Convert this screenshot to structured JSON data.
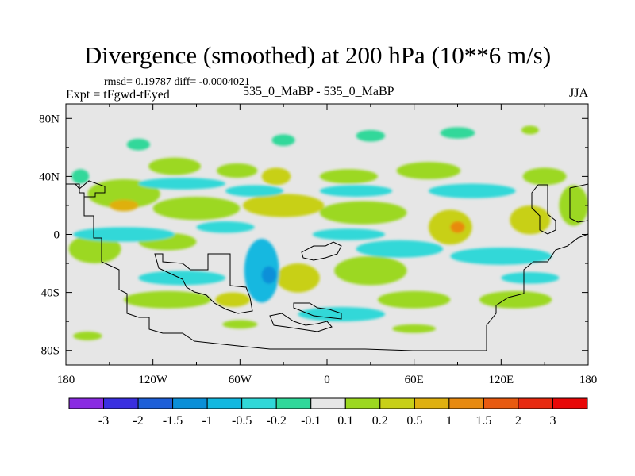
{
  "chart_data": {
    "type": "heatmap",
    "title": "Divergence (smoothed) at 200 hPa (10**6 m/s)",
    "stats_text": "rmsd= 0.19787 diff= -0.0004021",
    "left_label": "Expt = tFgwd-tEyed",
    "center_label": "535_0_MaBP - 535_0_MaBP",
    "right_label": "JJA",
    "x_ticks": [
      "180",
      "120W",
      "60W",
      "0",
      "60E",
      "120E",
      "180"
    ],
    "x_tick_values": [
      -180,
      -120,
      -60,
      0,
      60,
      120,
      180
    ],
    "y_ticks": [
      "80N",
      "40N",
      "0",
      "40S",
      "80S"
    ],
    "y_tick_values": [
      80,
      40,
      0,
      -40,
      -80
    ],
    "xlim": [
      -180,
      180
    ],
    "ylim": [
      -90,
      90
    ],
    "colorbar": {
      "levels": [
        "-3",
        "-2",
        "-1.5",
        "-1",
        "-0.5",
        "-0.2",
        "-0.1",
        "0.1",
        "0.2",
        "0.5",
        "1",
        "1.5",
        "2",
        "3"
      ],
      "colors": [
        "#8a2be2",
        "#3a2fe0",
        "#1e5fd8",
        "#0a8fd8",
        "#12b8e0",
        "#30d8d8",
        "#30d89a",
        "#e6e6e6",
        "#9cd820",
        "#c8d018",
        "#dfb010",
        "#e88a10",
        "#e85a10",
        "#e82a10",
        "#e80808"
      ]
    },
    "blobs": [
      {
        "lon": -105,
        "lat": 47,
        "rlon": 18,
        "rlat": 6,
        "level": 8
      },
      {
        "lon": -62,
        "lat": 44,
        "rlon": 14,
        "rlat": 5,
        "level": 8
      },
      {
        "lon": -35,
        "lat": 40,
        "rlon": 10,
        "rlat": 6,
        "level": 9
      },
      {
        "lon": 15,
        "lat": 40,
        "rlon": 20,
        "rlat": 5,
        "level": 8
      },
      {
        "lon": 70,
        "lat": 44,
        "rlon": 22,
        "rlat": 6,
        "level": 8
      },
      {
        "lon": 150,
        "lat": 40,
        "rlon": 15,
        "rlat": 6,
        "level": 8
      },
      {
        "lon": -140,
        "lat": 28,
        "rlon": 25,
        "rlat": 10,
        "level": 8
      },
      {
        "lon": -140,
        "lat": 20,
        "rlon": 10,
        "rlat": 4,
        "level": 10
      },
      {
        "lon": -90,
        "lat": 18,
        "rlon": 30,
        "rlat": 8,
        "level": 8
      },
      {
        "lon": -30,
        "lat": 20,
        "rlon": 28,
        "rlat": 8,
        "level": 9
      },
      {
        "lon": 25,
        "lat": 15,
        "rlon": 30,
        "rlat": 8,
        "level": 8
      },
      {
        "lon": 85,
        "lat": 5,
        "rlon": 15,
        "rlat": 12,
        "level": 9
      },
      {
        "lon": 90,
        "lat": 5,
        "rlon": 5,
        "rlat": 4,
        "level": 11
      },
      {
        "lon": 140,
        "lat": 10,
        "rlon": 14,
        "rlat": 10,
        "level": 9
      },
      {
        "lon": 170,
        "lat": 20,
        "rlon": 10,
        "rlat": 14,
        "level": 8
      },
      {
        "lon": -160,
        "lat": -10,
        "rlon": 18,
        "rlat": 10,
        "level": 8
      },
      {
        "lon": -110,
        "lat": -5,
        "rlon": 20,
        "rlat": 6,
        "level": 8
      },
      {
        "lon": -20,
        "lat": -30,
        "rlon": 15,
        "rlat": 10,
        "level": 9
      },
      {
        "lon": 30,
        "lat": -25,
        "rlon": 25,
        "rlat": 10,
        "level": 8
      },
      {
        "lon": -110,
        "lat": -45,
        "rlon": 30,
        "rlat": 6,
        "level": 8
      },
      {
        "lon": -65,
        "lat": -45,
        "rlon": 12,
        "rlat": 5,
        "level": 9
      },
      {
        "lon": 60,
        "lat": -45,
        "rlon": 25,
        "rlat": 6,
        "level": 8
      },
      {
        "lon": 130,
        "lat": -45,
        "rlon": 25,
        "rlat": 6,
        "level": 8
      },
      {
        "lon": -170,
        "lat": 40,
        "rlon": 6,
        "rlat": 5,
        "level": 6
      },
      {
        "lon": -100,
        "lat": 35,
        "rlon": 30,
        "rlat": 4,
        "level": 5
      },
      {
        "lon": -50,
        "lat": 30,
        "rlon": 20,
        "rlat": 4,
        "level": 5
      },
      {
        "lon": 20,
        "lat": 30,
        "rlon": 25,
        "rlat": 4,
        "level": 5
      },
      {
        "lon": 100,
        "lat": 30,
        "rlon": 30,
        "rlat": 5,
        "level": 5
      },
      {
        "lon": -140,
        "lat": 0,
        "rlon": 35,
        "rlat": 5,
        "level": 5
      },
      {
        "lon": -70,
        "lat": 5,
        "rlon": 20,
        "rlat": 4,
        "level": 5
      },
      {
        "lon": 15,
        "lat": 0,
        "rlon": 25,
        "rlat": 4,
        "level": 5
      },
      {
        "lon": 50,
        "lat": -10,
        "rlon": 30,
        "rlat": 6,
        "level": 5
      },
      {
        "lon": 120,
        "lat": -15,
        "rlon": 35,
        "rlat": 6,
        "level": 5
      },
      {
        "lon": -45,
        "lat": -25,
        "rlon": 12,
        "rlat": 22,
        "level": 4
      },
      {
        "lon": -40,
        "lat": -28,
        "rlon": 5,
        "rlat": 6,
        "level": 3
      },
      {
        "lon": -100,
        "lat": -30,
        "rlon": 30,
        "rlat": 5,
        "level": 5
      },
      {
        "lon": 10,
        "lat": -55,
        "rlon": 30,
        "rlat": 5,
        "level": 5
      },
      {
        "lon": 140,
        "lat": -30,
        "rlon": 20,
        "rlat": 4,
        "level": 5
      },
      {
        "lon": -30,
        "lat": 65,
        "rlon": 8,
        "rlat": 4,
        "level": 6
      },
      {
        "lon": 30,
        "lat": 68,
        "rlon": 10,
        "rlat": 4,
        "level": 6
      },
      {
        "lon": 90,
        "lat": 70,
        "rlon": 12,
        "rlat": 4,
        "level": 6
      },
      {
        "lon": -130,
        "lat": 62,
        "rlon": 8,
        "rlat": 4,
        "level": 6
      },
      {
        "lon": 140,
        "lat": 72,
        "rlon": 6,
        "rlat": 3,
        "level": 8
      },
      {
        "lon": -165,
        "lat": -70,
        "rlon": 10,
        "rlat": 3,
        "level": 8
      },
      {
        "lon": -60,
        "lat": -62,
        "rlon": 12,
        "rlat": 3,
        "level": 8
      },
      {
        "lon": 60,
        "lat": -65,
        "rlon": 15,
        "rlat": 3,
        "level": 8
      }
    ]
  }
}
